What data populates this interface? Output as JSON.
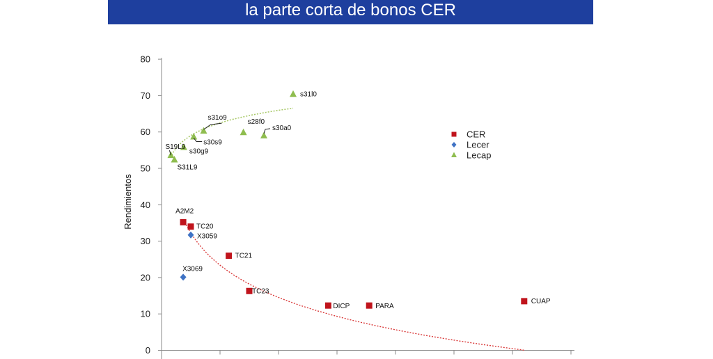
{
  "banner": {
    "title": "la parte corta de bonos CER"
  },
  "chart_data": {
    "type": "scatter",
    "ylabel": "Rendimientos",
    "ylim": [
      0,
      80
    ],
    "yticks": [
      "0",
      "10",
      "20",
      "30",
      "40",
      "50",
      "60",
      "70",
      "80"
    ],
    "xlim": [
      0,
      7
    ],
    "legend_position": "right",
    "grid": false,
    "series": [
      {
        "name": "CER",
        "color": "#c0141c",
        "marker": "square",
        "points": [
          {
            "x": 0.37,
            "y": 35.2,
            "label": "A2M2"
          },
          {
            "x": 0.5,
            "y": 34.0,
            "label": "TC20"
          },
          {
            "x": 1.15,
            "y": 26.0,
            "label": "TC21"
          },
          {
            "x": 1.5,
            "y": 16.3,
            "label": "TC23"
          },
          {
            "x": 2.85,
            "y": 12.3,
            "label": "DICP"
          },
          {
            "x": 3.55,
            "y": 12.3,
            "label": "PARA"
          },
          {
            "x": 6.2,
            "y": 13.5,
            "label": "CUAP"
          }
        ]
      },
      {
        "name": "Lecer",
        "color": "#3f72c4",
        "marker": "diamond",
        "points": [
          {
            "x": 0.5,
            "y": 31.7,
            "label": "X3059"
          },
          {
            "x": 0.37,
            "y": 20.1,
            "label": "X3069"
          }
        ]
      },
      {
        "name": "Lecap",
        "color": "#8fbd4f",
        "marker": "triangle",
        "points": [
          {
            "x": 0.16,
            "y": 53.6,
            "label": "S19L9"
          },
          {
            "x": 0.22,
            "y": 52.4,
            "label": "S31L9"
          },
          {
            "x": 0.38,
            "y": 55.8,
            "label": "s30g9"
          },
          {
            "x": 0.55,
            "y": 58.7,
            "label": "s30s9"
          },
          {
            "x": 0.72,
            "y": 60.3,
            "label": "s31o9"
          },
          {
            "x": 1.4,
            "y": 59.9,
            "label": "s28f0"
          },
          {
            "x": 1.75,
            "y": 59.0,
            "label": "s30a0"
          },
          {
            "x": 2.25,
            "y": 70.4,
            "label": "s31l0"
          }
        ]
      }
    ]
  }
}
